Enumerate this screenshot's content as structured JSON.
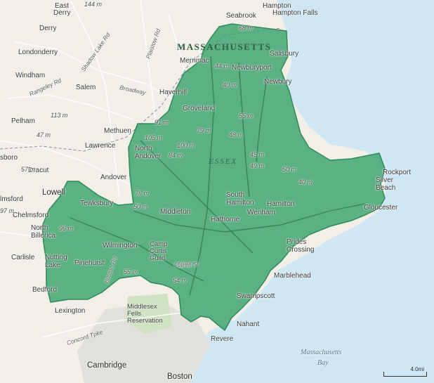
{
  "map": {
    "colors": {
      "water": "#cfe7f3",
      "land": "#f1efe8",
      "district_fill": "#3aa46d",
      "district_stroke": "#2f8a5a",
      "roads": "#ffffff"
    },
    "labels": {
      "state": "MASSACHUSETTS",
      "county": "ESSEX",
      "ocean": "Massachusetts",
      "ocean2": "Bay",
      "scale": "4.0mi",
      "towns": {
        "east_derry": "East",
        "east_derry2": "Derry",
        "derry": "Derry",
        "londonderry": "Londonderry",
        "windham": "Windham",
        "salem": "Salem",
        "pelham": "Pelham",
        "methuen": "Methuen",
        "lawrence": "Lawrence",
        "dracut": "Dracut",
        "lowell": "Lowell",
        "chelmsford": "Chelmsford",
        "north_billerica": "North\nBillerica",
        "carlisle": "Carlisle",
        "nutting_lake": "Nutting\nLake",
        "bedford": "Bedford",
        "lexington": "Lexington",
        "cambridge": "Cambridge",
        "boston": "Boston",
        "revere": "Revere",
        "nahant": "Nahant",
        "swampscott": "Swampscott",
        "marblehead": "Marblehead",
        "prides_crossing": "Prides\nCrossing",
        "gloucester": "Gloucester",
        "rockport": "Rockport",
        "silver_beach": "Silver\nBeach",
        "wenham": "Wenham",
        "hamilton": "Hamilton",
        "south_hamilton": "South\nHamilton",
        "hathorne": "Hathorne",
        "middleton": "Middleton",
        "wilmington": "Wilmington",
        "pinehurst": "Pinehurst",
        "tewksbury": "Tewksbury",
        "andover": "Andover",
        "north_andover": "North\nAndover",
        "groveland": "Groveland",
        "haverhill": "Haverhill",
        "merrimac": "Merrimac",
        "newburyport": "Newburyport",
        "newbury": "Newbury",
        "salisbury": "Salisbury",
        "seabrook": "Seabrook",
        "hampton_falls": "Hampton\nFalls",
        "hampton": "Hampton",
        "camp_curtis_guild": "Camp\nCurtis\nGuild",
        "middlesex_fells": "Middlesex\nFells\nReservation",
        "borough": "sboro",
        "elmsford": "lmsford"
      },
      "elevations": [
        "144 m",
        "44 m",
        "40 m",
        "55 m",
        "79 m",
        "48 m",
        "100 m",
        "105 m",
        "84 m",
        "91 m",
        "76 m",
        "50 m",
        "45 m",
        "49 m",
        "50 m",
        "40 m",
        "96 m",
        "55 m",
        "52 m",
        "54 m",
        "113 m",
        "47 m",
        "57 m",
        "97 m",
        "68 m"
      ],
      "roads": [
        "Broadway",
        "Lowell St",
        "Concord Tpke",
        "Plaistow Rd",
        "Shadow Lake Rd",
        "Rangeley Rd",
        "Boston Rd"
      ]
    }
  }
}
